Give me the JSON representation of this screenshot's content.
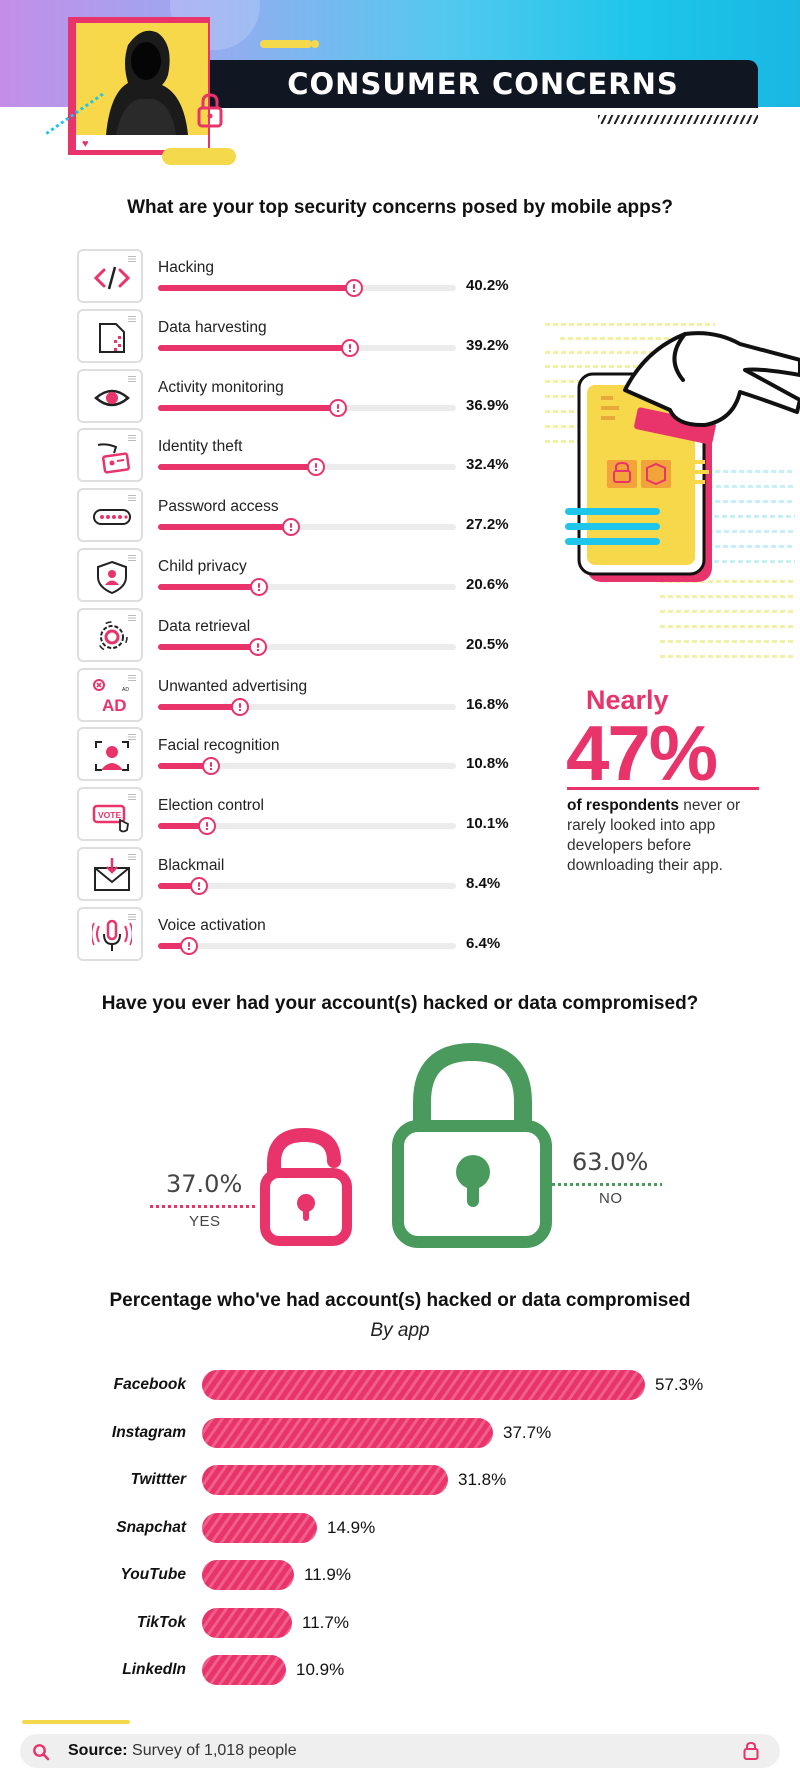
{
  "header": {
    "title": "CONSUMER CONCERNS"
  },
  "security_concerns": {
    "question": "What are your top security concerns posed by mobile apps?",
    "items": [
      {
        "label": "Hacking",
        "value": "40.2%",
        "pct": 40.2,
        "icon": "code-icon"
      },
      {
        "label": "Data harvesting",
        "value": "39.2%",
        "pct": 39.2,
        "icon": "document-data-icon"
      },
      {
        "label": "Activity monitoring",
        "value": "36.9%",
        "pct": 36.9,
        "icon": "eye-icon"
      },
      {
        "label": "Identity theft",
        "value": "32.4%",
        "pct": 32.4,
        "icon": "id-card-hand-icon"
      },
      {
        "label": "Password access",
        "value": "27.2%",
        "pct": 27.2,
        "icon": "password-field-icon"
      },
      {
        "label": "Child privacy",
        "value": "20.6%",
        "pct": 20.6,
        "icon": "child-shield-icon"
      },
      {
        "label": "Data retrieval",
        "value": "20.5%",
        "pct": 20.5,
        "icon": "gear-icon"
      },
      {
        "label": "Unwanted advertising",
        "value": "16.8%",
        "pct": 16.8,
        "icon": "ad-block-icon"
      },
      {
        "label": "Facial recognition",
        "value": "10.8%",
        "pct": 10.8,
        "icon": "face-scan-icon"
      },
      {
        "label": "Election control",
        "value": "10.1%",
        "pct": 10.1,
        "icon": "vote-icon"
      },
      {
        "label": "Blackmail",
        "value": "8.4%",
        "pct": 8.4,
        "icon": "envelope-icon"
      },
      {
        "label": "Voice activation",
        "value": "6.4%",
        "pct": 6.4,
        "icon": "microphone-icon"
      }
    ]
  },
  "stat": {
    "nearly": "Nearly",
    "big": "47%",
    "text_bold": "of respondents",
    "text_rest": " never or rarely looked into app developers before downloading their app."
  },
  "hacked": {
    "question": "Have you ever had your account(s) hacked or data compromised?",
    "yes": {
      "value": "37.0%",
      "label": "YES"
    },
    "no": {
      "value": "63.0%",
      "label": "NO"
    }
  },
  "by_app": {
    "title": "Percentage who've had account(s) hacked or data compromised",
    "subtitle": "By app",
    "items": [
      {
        "name": "Facebook",
        "value": "57.3%",
        "pct": 57.3
      },
      {
        "name": "Instagram",
        "value": "37.7%",
        "pct": 37.7
      },
      {
        "name": "Twittter",
        "value": "31.8%",
        "pct": 31.8
      },
      {
        "name": "Snapchat",
        "value": "14.9%",
        "pct": 14.9
      },
      {
        "name": "YouTube",
        "value": "11.9%",
        "pct": 11.9
      },
      {
        "name": "TikTok",
        "value": "11.7%",
        "pct": 11.7
      },
      {
        "name": "LinkedIn",
        "value": "10.9%",
        "pct": 10.9
      }
    ]
  },
  "footer": {
    "source_label": "Source:",
    "source_text": " Survey of 1,018 people"
  },
  "colors": {
    "accent": "#e8336b",
    "green": "#4a9a5e",
    "yellow": "#f5d94c",
    "cyan": "#1dc6ea",
    "dark": "#101622"
  }
}
